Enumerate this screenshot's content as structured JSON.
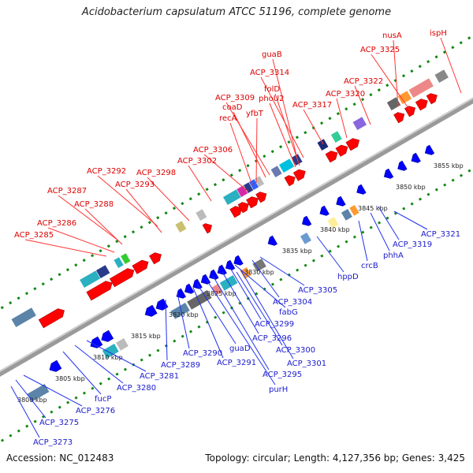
{
  "title": "Acidobacterium capsulatum ATCC 51196, complete genome",
  "accession": "Accession: NC_012483",
  "topology": "Topology: circular; Length: 4,127,356 bp; Genes: 3,425",
  "colors": {
    "forward_gene": "#ff0000",
    "reverse_gene": "#0000ff",
    "backbone": "#888888",
    "tick": "#118811"
  },
  "scale_ticks": [
    "3800 kbp",
    "3805 kbp",
    "3810 kbp",
    "3815 kbp",
    "3820 kbp",
    "3825 kbp",
    "3830 kbp",
    "3835 kbp",
    "3840 kbp",
    "3845 kbp",
    "3850 kbp",
    "3855 kbp"
  ],
  "forward_labels": [
    "nusA",
    "ispH",
    "ACP_3325",
    "guaB",
    "ACP_3322",
    "ACP_3314",
    "folD",
    "ACP_3320",
    "phoU2",
    "ACP_3317",
    "ACP_3309",
    "coaD",
    "yfbT",
    "recA",
    "ACP_3306",
    "ACP_3302",
    "ACP_3292",
    "ACP_3298",
    "ACP_3293",
    "ACP_3287",
    "ACP_3288",
    "ACP_3286",
    "ACP_3285"
  ],
  "reverse_labels": [
    "ACP_3273",
    "ACP_3275",
    "ACP_3276",
    "fucP",
    "ACP_3280",
    "ACP_3281",
    "ACP_3289",
    "ACP_3290",
    "ACP_3291",
    "guaD",
    "purH",
    "ACP_3295",
    "ACP_3296",
    "ACP_3299",
    "fabG",
    "ACP_3300",
    "ACP_3301",
    "ACP_3304",
    "ACP_3305",
    "hppD",
    "crcB",
    "phhA",
    "ACP_3319",
    "ACP_3321"
  ]
}
